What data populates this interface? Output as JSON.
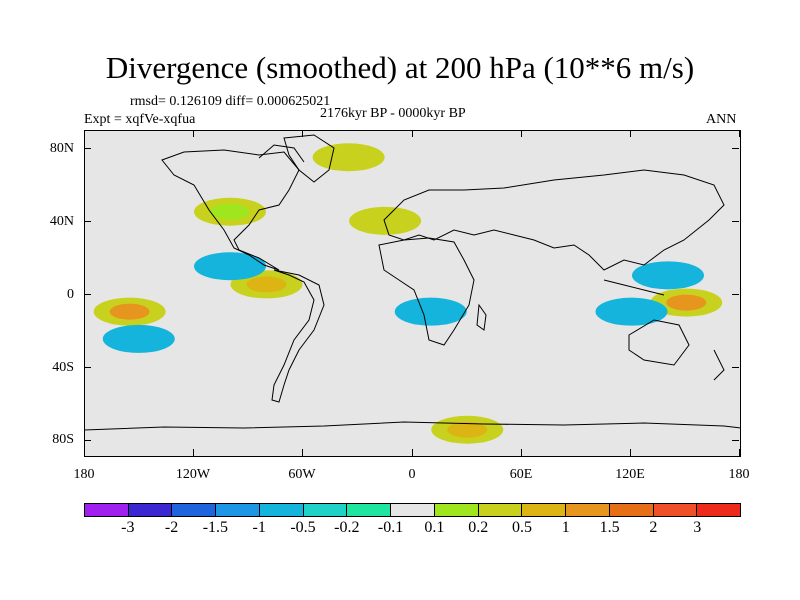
{
  "title": "Divergence (smoothed) at 200 hPa (10**6 m/s)",
  "stats": "rmsd= 0.126109 diff= 0.000625021",
  "experiment": "Expt = xqfVe-xqfua",
  "period": "2176kyr BP - 0000kyr BP",
  "season": "ANN",
  "x_axis_labels": [
    "180",
    "120W",
    "60W",
    "0",
    "60E",
    "120E",
    "180"
  ],
  "y_axis_labels": [
    "80N",
    "40N",
    "0",
    "40S",
    "80S"
  ],
  "colorbar": {
    "labels": [
      "-3",
      "-2",
      "-1.5",
      "-1",
      "-0.5",
      "-0.2",
      "-0.1",
      "0.1",
      "0.2",
      "0.5",
      "1",
      "1.5",
      "2",
      "3"
    ],
    "colors": [
      "#a020f0",
      "#3c28d2",
      "#1e64dc",
      "#1e96e6",
      "#14b4dc",
      "#1ed2c8",
      "#1ee6a0",
      "#e6e6e6",
      "#a0e61e",
      "#c8d21e",
      "#dcb414",
      "#e6961e",
      "#e66e14",
      "#f05028",
      "#ee2a1a"
    ]
  },
  "chart_data": {
    "type": "heatmap",
    "title": "Divergence (smoothed) at 200 hPa (10**6 m/s)",
    "units": "10**6 m/s",
    "level": "200 hPa",
    "x_range": [
      -180,
      180
    ],
    "y_range": [
      -90,
      90
    ],
    "levels": [
      -3,
      -2,
      -1.5,
      -1,
      -0.5,
      -0.2,
      -0.1,
      0.1,
      0.2,
      0.5,
      1,
      1.5,
      2,
      3
    ],
    "anomaly_features": [
      {
        "lon": -100,
        "lat": 45,
        "value": 0.2
      },
      {
        "lon": -80,
        "lat": 5,
        "value": 1.0
      },
      {
        "lon": -155,
        "lat": -10,
        "value": 1.2
      },
      {
        "lon": -150,
        "lat": -25,
        "value": -0.6
      },
      {
        "lon": -100,
        "lat": 15,
        "value": -0.8
      },
      {
        "lon": -35,
        "lat": 75,
        "value": 0.3
      },
      {
        "lon": -15,
        "lat": 40,
        "value": 0.3
      },
      {
        "lon": 10,
        "lat": -10,
        "value": -0.7
      },
      {
        "lon": 150,
        "lat": -5,
        "value": 1.2
      },
      {
        "lon": 120,
        "lat": -10,
        "value": -0.8
      },
      {
        "lon": 140,
        "lat": 10,
        "value": -0.5
      },
      {
        "lon": 30,
        "lat": -75,
        "value": 0.6
      }
    ]
  }
}
